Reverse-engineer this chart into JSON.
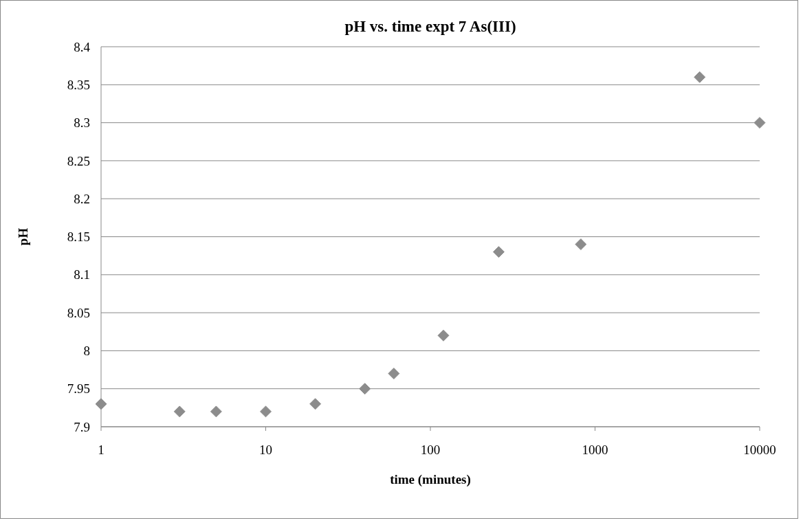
{
  "chart_data": {
    "type": "scatter",
    "title": "pH vs. time expt 7 As(III)",
    "xlabel": "time (minutes)",
    "ylabel": "pH",
    "x": [
      1,
      3,
      5,
      10,
      20,
      40,
      60,
      120,
      260,
      820,
      4320,
      10000
    ],
    "series": [
      {
        "color": "#8c8c8c",
        "values": [
          7.93,
          7.92,
          7.92,
          7.92,
          7.93,
          7.95,
          7.97,
          8.02,
          8.13,
          8.14,
          8.36,
          8.3
        ]
      }
    ],
    "log": "x",
    "xlim": [
      1,
      10000
    ],
    "xticks": [
      1,
      10,
      100,
      1000,
      10000
    ],
    "ylim": [
      7.9,
      8.4
    ],
    "yticks": [
      7.9,
      7.95,
      8,
      8.05,
      8.1,
      8.15,
      8.2,
      8.25,
      8.3,
      8.35,
      8.4
    ],
    "grid": "y",
    "marker": "diamond"
  }
}
